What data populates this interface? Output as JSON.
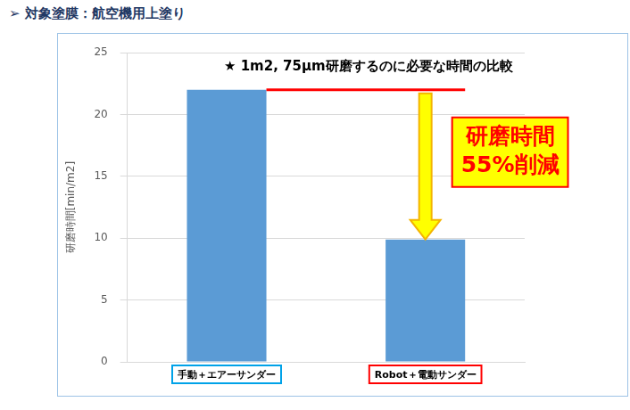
{
  "chart_data": {
    "type": "bar",
    "subtitle": "➢ 対象塗膜：航空機用上塗り",
    "title": "★ 1m2, 75μm研磨するのに必要な時間の比較",
    "y_label": "研磨時間[min/m2]",
    "categories": [
      "手動＋エアーサンダー",
      "Robot＋電動サンダー"
    ],
    "values": [
      22,
      9.9
    ],
    "color": "#5b9bd5",
    "ylim": [
      0,
      25
    ],
    "yticks": [
      0,
      5,
      10,
      15,
      20,
      25
    ],
    "grid": true,
    "annotation": "研磨時間\n55%削減"
  }
}
